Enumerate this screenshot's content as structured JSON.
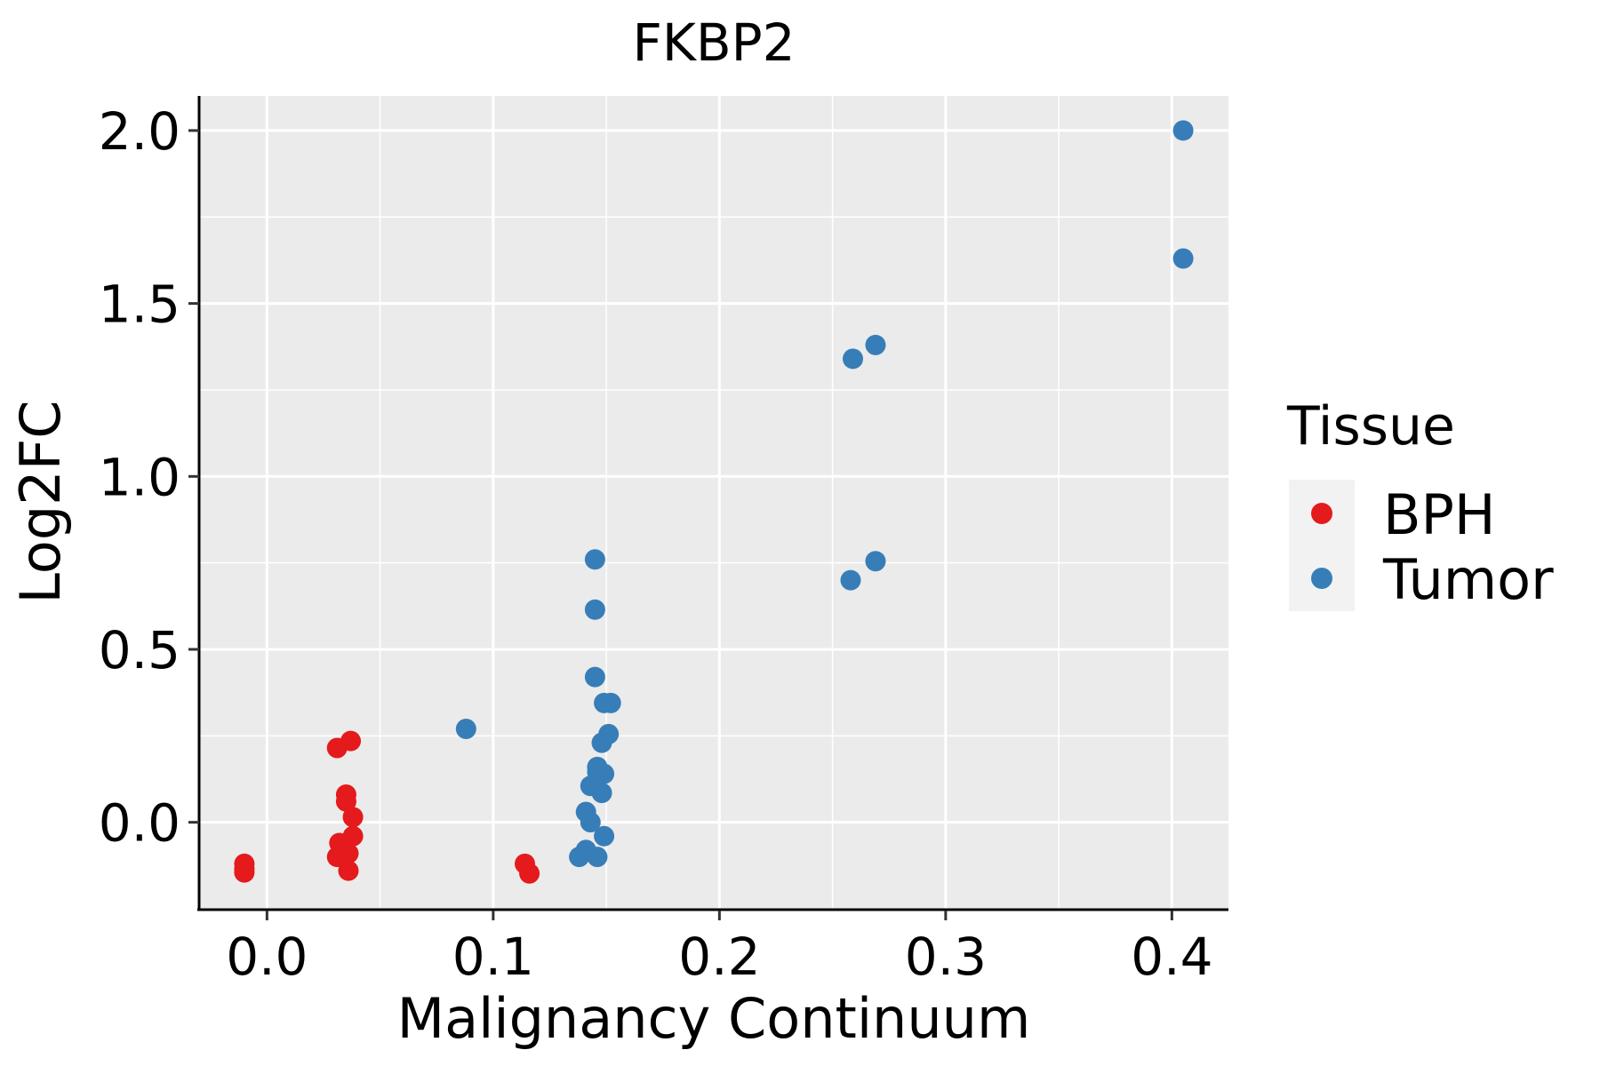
{
  "chart_data": {
    "type": "scatter",
    "title": "FKBP2",
    "xlabel": "Malignancy Continuum",
    "ylabel": "Log2FC",
    "xlim": [
      -0.03,
      0.425
    ],
    "ylim": [
      -0.25,
      2.1
    ],
    "x_ticks": [
      0.0,
      0.1,
      0.2,
      0.3,
      0.4
    ],
    "x_tick_labels": [
      "0.0",
      "0.1",
      "0.2",
      "0.3",
      "0.4"
    ],
    "y_ticks": [
      0.0,
      0.5,
      1.0,
      1.5,
      2.0
    ],
    "y_tick_labels": [
      "0.0",
      "0.5",
      "1.0",
      "1.5",
      "2.0"
    ],
    "grid": true,
    "legend": {
      "title": "Tissue",
      "position": "right"
    },
    "series": [
      {
        "name": "BPH",
        "color": "#E41A1C",
        "points": [
          {
            "x": -0.01,
            "y": -0.12
          },
          {
            "x": -0.01,
            "y": -0.135
          },
          {
            "x": -0.01,
            "y": -0.145
          },
          {
            "x": 0.031,
            "y": 0.215
          },
          {
            "x": 0.037,
            "y": 0.235
          },
          {
            "x": 0.035,
            "y": 0.08
          },
          {
            "x": 0.035,
            "y": 0.06
          },
          {
            "x": 0.038,
            "y": 0.015
          },
          {
            "x": 0.038,
            "y": -0.04
          },
          {
            "x": 0.032,
            "y": -0.06
          },
          {
            "x": 0.031,
            "y": -0.1
          },
          {
            "x": 0.036,
            "y": -0.09
          },
          {
            "x": 0.036,
            "y": -0.14
          },
          {
            "x": 0.114,
            "y": -0.12
          },
          {
            "x": 0.116,
            "y": -0.148
          }
        ]
      },
      {
        "name": "Tumor",
        "color": "#377EB8",
        "points": [
          {
            "x": 0.088,
            "y": 0.27
          },
          {
            "x": 0.145,
            "y": 0.76
          },
          {
            "x": 0.145,
            "y": 0.615
          },
          {
            "x": 0.145,
            "y": 0.42
          },
          {
            "x": 0.149,
            "y": 0.345
          },
          {
            "x": 0.152,
            "y": 0.345
          },
          {
            "x": 0.151,
            "y": 0.255
          },
          {
            "x": 0.148,
            "y": 0.23
          },
          {
            "x": 0.146,
            "y": 0.16
          },
          {
            "x": 0.146,
            "y": 0.145
          },
          {
            "x": 0.149,
            "y": 0.14
          },
          {
            "x": 0.143,
            "y": 0.105
          },
          {
            "x": 0.148,
            "y": 0.085
          },
          {
            "x": 0.141,
            "y": 0.03
          },
          {
            "x": 0.143,
            "y": 0.0
          },
          {
            "x": 0.149,
            "y": -0.04
          },
          {
            "x": 0.141,
            "y": -0.08
          },
          {
            "x": 0.138,
            "y": -0.1
          },
          {
            "x": 0.146,
            "y": -0.1
          },
          {
            "x": 0.258,
            "y": 0.7
          },
          {
            "x": 0.269,
            "y": 0.755
          },
          {
            "x": 0.259,
            "y": 1.34
          },
          {
            "x": 0.269,
            "y": 1.38
          },
          {
            "x": 0.405,
            "y": 2.0
          },
          {
            "x": 0.405,
            "y": 1.63
          }
        ]
      }
    ]
  }
}
